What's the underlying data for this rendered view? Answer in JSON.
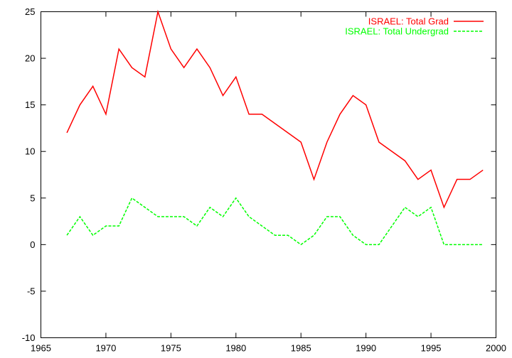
{
  "chart_data": {
    "type": "line",
    "title": "",
    "xlabel": "",
    "ylabel": "",
    "xlim": [
      1965,
      2000
    ],
    "ylim": [
      -10,
      25
    ],
    "xticks": [
      1965,
      1970,
      1975,
      1980,
      1985,
      1990,
      1995,
      2000
    ],
    "yticks": [
      -10,
      -5,
      0,
      5,
      10,
      15,
      20,
      25
    ],
    "grid": false,
    "legend_position": "top-right",
    "series": [
      {
        "name": "ISRAEL: Total Grad",
        "color": "#ff0000",
        "style": "solid",
        "x": [
          1967,
          1968,
          1969,
          1970,
          1971,
          1972,
          1973,
          1974,
          1975,
          1976,
          1977,
          1978,
          1979,
          1980,
          1981,
          1982,
          1983,
          1984,
          1985,
          1986,
          1987,
          1988,
          1989,
          1990,
          1991,
          1992,
          1993,
          1994,
          1995,
          1996,
          1997,
          1998,
          1999
        ],
        "y": [
          12,
          15,
          17,
          14,
          21,
          19,
          18,
          25,
          21,
          19,
          21,
          19,
          16,
          18,
          14,
          14,
          13,
          12,
          11,
          7,
          11,
          14,
          16,
          15,
          11,
          10,
          9,
          7,
          8,
          4,
          7,
          7,
          8
        ]
      },
      {
        "name": "ISRAEL: Total Undergrad",
        "color": "#00ff00",
        "style": "dashed",
        "x": [
          1967,
          1968,
          1969,
          1970,
          1971,
          1972,
          1973,
          1974,
          1975,
          1976,
          1977,
          1978,
          1979,
          1980,
          1981,
          1982,
          1983,
          1984,
          1985,
          1986,
          1987,
          1988,
          1989,
          1990,
          1991,
          1992,
          1993,
          1994,
          1995,
          1996,
          1997,
          1998,
          1999
        ],
        "y": [
          1,
          3,
          1,
          2,
          2,
          5,
          4,
          3,
          3,
          3,
          2,
          4,
          3,
          5,
          3,
          2,
          1,
          1,
          0,
          1,
          3,
          3,
          1,
          0,
          0,
          2,
          4,
          3,
          4,
          0,
          0,
          0,
          0
        ]
      }
    ]
  }
}
